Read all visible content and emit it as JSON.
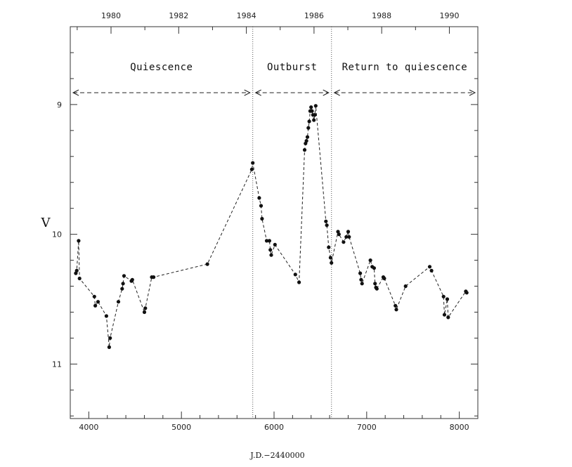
{
  "chart_data": {
    "type": "scatter",
    "xlabel": "J.D.−2440000",
    "ylabel": "V",
    "xlim": [
      3800,
      8200
    ],
    "ylim": [
      11.42,
      8.4
    ],
    "y_inverted": true,
    "x_ticks": [
      4000,
      5000,
      6000,
      7000,
      8000
    ],
    "y_ticks": [
      9,
      10,
      11
    ],
    "top_axis_year_ticks": [
      "1980",
      "1982",
      "1984",
      "1986",
      "1988",
      "1990"
    ],
    "phase_boundaries_jd": [
      5770,
      6620
    ],
    "phases": [
      {
        "label": "Quiescence",
        "x_start": 3800,
        "x_end": 5770
      },
      {
        "label": "Outburst",
        "x_start": 5770,
        "x_end": 6620
      },
      {
        "label": "Return to quiescence",
        "x_start": 6620,
        "x_end": 8200
      }
    ],
    "series": [
      {
        "style": "dashed line with filled markers",
        "points": [
          [
            3860,
            10.3
          ],
          [
            3870,
            10.28
          ],
          [
            3890,
            10.05
          ],
          [
            3900,
            10.34
          ],
          [
            4060,
            10.48
          ],
          [
            4070,
            10.55
          ],
          [
            4100,
            10.52
          ],
          [
            4190,
            10.63
          ],
          [
            4220,
            10.87
          ],
          [
            4230,
            10.8
          ],
          [
            4320,
            10.52
          ],
          [
            4360,
            10.42
          ],
          [
            4370,
            10.38
          ],
          [
            4380,
            10.32
          ],
          [
            4460,
            10.36
          ],
          [
            4470,
            10.35
          ],
          [
            4600,
            10.6
          ],
          [
            4610,
            10.57
          ],
          [
            4680,
            10.33
          ],
          [
            4700,
            10.33
          ],
          [
            5280,
            10.23
          ],
          [
            5760,
            9.5
          ],
          [
            5770,
            9.45
          ],
          [
            5840,
            9.72
          ],
          [
            5860,
            9.78
          ],
          [
            5870,
            9.88
          ],
          [
            5920,
            10.05
          ],
          [
            5950,
            10.05
          ],
          [
            5960,
            10.12
          ],
          [
            5970,
            10.16
          ],
          [
            6010,
            10.08
          ],
          [
            6230,
            10.31
          ],
          [
            6270,
            10.37
          ],
          [
            6330,
            9.35
          ],
          [
            6340,
            9.3
          ],
          [
            6350,
            9.28
          ],
          [
            6360,
            9.25
          ],
          [
            6370,
            9.18
          ],
          [
            6380,
            9.13
          ],
          [
            6390,
            9.05
          ],
          [
            6400,
            9.02
          ],
          [
            6410,
            9.05
          ],
          [
            6420,
            9.08
          ],
          [
            6430,
            9.12
          ],
          [
            6440,
            9.08
          ],
          [
            6450,
            9.01
          ],
          [
            6560,
            9.9
          ],
          [
            6570,
            9.93
          ],
          [
            6590,
            10.1
          ],
          [
            6610,
            10.18
          ],
          [
            6620,
            10.22
          ],
          [
            6690,
            9.98
          ],
          [
            6700,
            10.0
          ],
          [
            6750,
            10.06
          ],
          [
            6780,
            10.02
          ],
          [
            6800,
            9.98
          ],
          [
            6810,
            10.02
          ],
          [
            6930,
            10.3
          ],
          [
            6940,
            10.35
          ],
          [
            6950,
            10.38
          ],
          [
            7040,
            10.2
          ],
          [
            7060,
            10.25
          ],
          [
            7080,
            10.26
          ],
          [
            7090,
            10.38
          ],
          [
            7100,
            10.41
          ],
          [
            7110,
            10.42
          ],
          [
            7180,
            10.33
          ],
          [
            7190,
            10.34
          ],
          [
            7310,
            10.55
          ],
          [
            7320,
            10.58
          ],
          [
            7420,
            10.4
          ],
          [
            7680,
            10.25
          ],
          [
            7700,
            10.28
          ],
          [
            7830,
            10.48
          ],
          [
            7840,
            10.62
          ],
          [
            7870,
            10.5
          ],
          [
            7880,
            10.64
          ],
          [
            8070,
            10.44
          ],
          [
            8080,
            10.45
          ]
        ]
      }
    ]
  }
}
